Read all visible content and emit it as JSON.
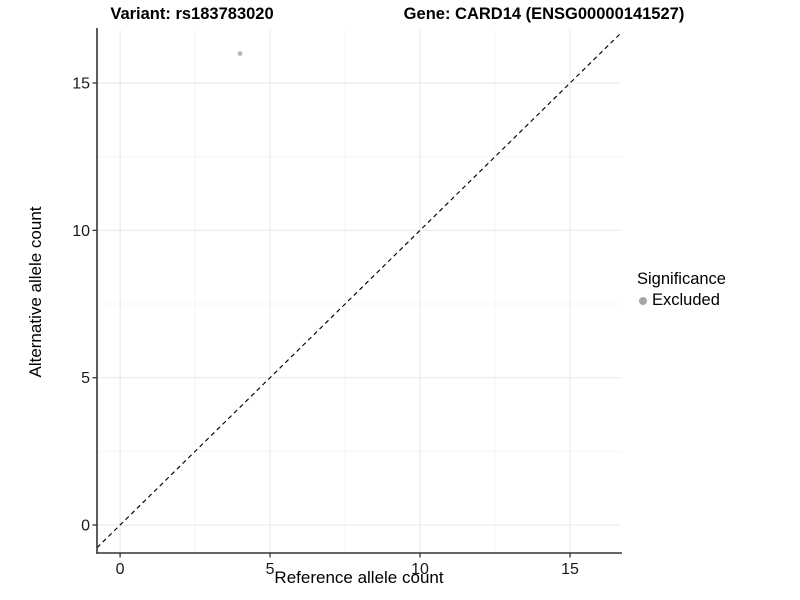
{
  "header": {
    "title_left": "Variant: rs183783020",
    "title_right": "Gene: CARD14 (ENSG00000141527)"
  },
  "legend": {
    "title": "Significance",
    "items": [
      {
        "label": "Excluded",
        "color": "#a6a6a6"
      }
    ]
  },
  "chart_data": {
    "type": "scatter",
    "titles": [
      "Variant: rs183783020",
      "Gene: CARD14 (ENSG00000141527)"
    ],
    "xlabel": "Reference allele count",
    "ylabel": "Alternative allele count",
    "xlim": [
      -0.77,
      16.7
    ],
    "ylim": [
      -0.95,
      16.8
    ],
    "xticks": [
      0,
      5,
      10,
      15
    ],
    "yticks": [
      0,
      5,
      10,
      15
    ],
    "minor_xticks": [
      2.5,
      7.5,
      12.5
    ],
    "minor_yticks": [
      2.5,
      7.5,
      12.5
    ],
    "grid": true,
    "legend_position": "right",
    "series": [
      {
        "name": "Excluded",
        "color": "#b8b8b8",
        "points": [
          {
            "x": 4,
            "y": 16
          }
        ]
      }
    ],
    "reference_line": {
      "slope": 1,
      "intercept": 0,
      "style": "dashed",
      "color": "#000000"
    }
  },
  "colors": {
    "background": "#ffffff",
    "grid_major": "#e9e9e9",
    "grid_minor": "#f4f4f4",
    "axis_line": "#333333",
    "tick_text": "#1a1a1a"
  }
}
